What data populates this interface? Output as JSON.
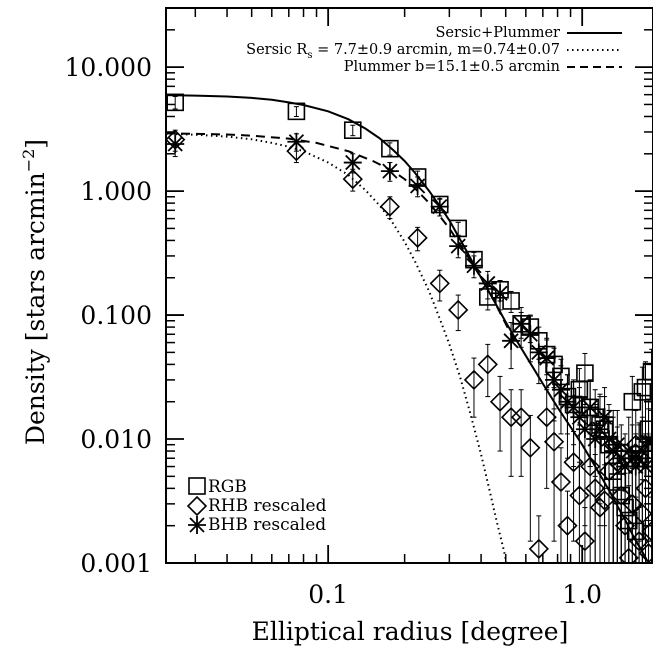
{
  "chart_data": {
    "type": "scatter",
    "xlabel": "Elliptical radius [degree]",
    "ylabel": "Density [stars arcmin",
    "ylabel_sup": "−2",
    "ylabel_end": "]",
    "x_scale": "log",
    "y_scale": "log",
    "xlim": [
      0.023,
      1.9
    ],
    "ylim": [
      0.001,
      30
    ],
    "grid": false,
    "x_ticks": [
      {
        "value": 0.1,
        "label": "0.1"
      },
      {
        "value": 1.0,
        "label": "1.0"
      }
    ],
    "y_ticks": [
      {
        "value": 10,
        "label": "10.000"
      },
      {
        "value": 1,
        "label": "1.000"
      },
      {
        "value": 0.1,
        "label": "0.100"
      },
      {
        "value": 0.01,
        "label": "0.010"
      },
      {
        "value": 0.001,
        "label": "0.001"
      }
    ],
    "legend_lines": {
      "position": "top-right",
      "entries": [
        {
          "label": "Sersic+Plummer",
          "style": "solid"
        },
        {
          "label_main": "Sersic R",
          "label_sub": "s",
          "label_rest": " = 7.7±0.9 arcmin, m=0.74±0.07",
          "style": "dotted"
        },
        {
          "label": "Plummer b=15.1±0.5 arcmin",
          "style": "dashed"
        }
      ]
    },
    "legend_markers": {
      "position": "bottom-left",
      "entries": [
        {
          "label": "RGB",
          "marker": "square"
        },
        {
          "label": "RHB rescaled",
          "marker": "diamond"
        },
        {
          "label": "BHB rescaled",
          "marker": "asterisk"
        }
      ]
    },
    "series": [
      {
        "name": "RGB",
        "marker": "square",
        "points": [
          {
            "x": 0.025,
            "y": 5.2,
            "err": 0.6
          },
          {
            "x": 0.075,
            "y": 4.4,
            "err": 0.4
          },
          {
            "x": 0.125,
            "y": 3.1,
            "err": 0.3
          },
          {
            "x": 0.175,
            "y": 2.2,
            "err": 0.25
          },
          {
            "x": 0.225,
            "y": 1.3,
            "err": 0.15
          },
          {
            "x": 0.275,
            "y": 0.78,
            "err": 0.08
          },
          {
            "x": 0.325,
            "y": 0.5,
            "err": 0.06
          },
          {
            "x": 0.375,
            "y": 0.28,
            "err": 0.04
          },
          {
            "x": 0.425,
            "y": 0.14,
            "err": 0.03
          },
          {
            "x": 0.475,
            "y": 0.16,
            "err": 0.03
          },
          {
            "x": 0.525,
            "y": 0.13,
            "err": 0.025
          },
          {
            "x": 0.575,
            "y": 0.085,
            "err": 0.02
          },
          {
            "x": 0.625,
            "y": 0.08,
            "err": 0.02
          },
          {
            "x": 0.675,
            "y": 0.062,
            "err": 0.018
          },
          {
            "x": 0.725,
            "y": 0.048,
            "err": 0.015
          },
          {
            "x": 0.775,
            "y": 0.04,
            "err": 0.014
          },
          {
            "x": 0.825,
            "y": 0.032,
            "err": 0.012
          },
          {
            "x": 0.875,
            "y": 0.022,
            "err": 0.011
          },
          {
            "x": 0.925,
            "y": 0.019,
            "err": 0.01
          },
          {
            "x": 0.975,
            "y": 0.025,
            "err": 0.012
          },
          {
            "x": 1.025,
            "y": 0.034,
            "err": 0.015
          },
          {
            "x": 1.075,
            "y": 0.018,
            "err": 0.012
          },
          {
            "x": 1.125,
            "y": 0.015,
            "err": 0.01
          },
          {
            "x": 1.175,
            "y": 0.013,
            "err": 0.01
          },
          {
            "x": 1.225,
            "y": 0.012,
            "err": 0.01
          },
          {
            "x": 1.275,
            "y": 0.009,
            "err": 0.008
          },
          {
            "x": 1.325,
            "y": 0.0055,
            "err": 0.005
          },
          {
            "x": 1.375,
            "y": 0.0045,
            "err": 0.004
          },
          {
            "x": 1.425,
            "y": 0.0035,
            "err": 0.003
          },
          {
            "x": 1.475,
            "y": 0.0028,
            "err": 0.0025
          },
          {
            "x": 1.525,
            "y": 0.0022,
            "err": 0.002
          },
          {
            "x": 1.575,
            "y": 0.02,
            "err": 0.012
          },
          {
            "x": 1.625,
            "y": 0.0018,
            "err": 0.0016
          },
          {
            "x": 1.675,
            "y": 0.0075,
            "err": 0.006
          },
          {
            "x": 1.725,
            "y": 0.024,
            "err": 0.014
          },
          {
            "x": 1.775,
            "y": 0.026,
            "err": 0.016
          },
          {
            "x": 1.825,
            "y": 0.012,
            "err": 0.009
          },
          {
            "x": 1.875,
            "y": 0.035,
            "err": 0.018
          }
        ]
      },
      {
        "name": "RHB rescaled",
        "marker": "diamond",
        "points": [
          {
            "x": 0.025,
            "y": 2.6,
            "err": 0.5
          },
          {
            "x": 0.075,
            "y": 2.1,
            "err": 0.4
          },
          {
            "x": 0.125,
            "y": 1.25,
            "err": 0.25
          },
          {
            "x": 0.175,
            "y": 0.75,
            "err": 0.15
          },
          {
            "x": 0.225,
            "y": 0.42,
            "err": 0.09
          },
          {
            "x": 0.275,
            "y": 0.18,
            "err": 0.05
          },
          {
            "x": 0.325,
            "y": 0.11,
            "err": 0.035
          },
          {
            "x": 0.375,
            "y": 0.03,
            "err": 0.015
          },
          {
            "x": 0.425,
            "y": 0.04,
            "err": 0.018
          },
          {
            "x": 0.475,
            "y": 0.02,
            "err": 0.012
          },
          {
            "x": 0.525,
            "y": 0.015,
            "err": 0.01
          },
          {
            "x": 0.575,
            "y": 0.015,
            "err": 0.01
          },
          {
            "x": 0.625,
            "y": 0.0085,
            "err": 0.007
          },
          {
            "x": 0.675,
            "y": 0.0013,
            "err": 0.0011
          },
          {
            "x": 0.725,
            "y": 0.015,
            "err": 0.011
          },
          {
            "x": 0.775,
            "y": 0.0095,
            "err": 0.008
          },
          {
            "x": 0.825,
            "y": 0.0045,
            "err": 0.004
          },
          {
            "x": 0.875,
            "y": 0.002,
            "err": 0.0018
          },
          {
            "x": 0.925,
            "y": 0.0065,
            "err": 0.005
          },
          {
            "x": 0.975,
            "y": 0.0035,
            "err": 0.003
          },
          {
            "x": 1.025,
            "y": 0.0015,
            "err": 0.0013
          },
          {
            "x": 1.075,
            "y": 0.006,
            "err": 0.005
          },
          {
            "x": 1.125,
            "y": 0.004,
            "err": 0.0035
          },
          {
            "x": 1.175,
            "y": 0.0028,
            "err": 0.0025
          },
          {
            "x": 1.225,
            "y": 0.0032,
            "err": 0.003
          },
          {
            "x": 1.275,
            "y": 0.0055,
            "err": 0.005
          },
          {
            "x": 1.325,
            "y": 0.009,
            "err": 0.008
          },
          {
            "x": 1.375,
            "y": 0.0065,
            "err": 0.006
          },
          {
            "x": 1.425,
            "y": 0.0035,
            "err": 0.003
          },
          {
            "x": 1.475,
            "y": 0.002,
            "err": 0.0018
          },
          {
            "x": 1.525,
            "y": 0.0011,
            "err": 0.001
          },
          {
            "x": 1.575,
            "y": 0.003,
            "err": 0.0028
          },
          {
            "x": 1.625,
            "y": 0.009,
            "err": 0.008
          },
          {
            "x": 1.675,
            "y": 0.0015,
            "err": 0.0013
          },
          {
            "x": 1.725,
            "y": 0.0025,
            "err": 0.0022
          },
          {
            "x": 1.775,
            "y": 0.004,
            "err": 0.0035
          },
          {
            "x": 1.825,
            "y": 0.0012,
            "err": 0.001
          },
          {
            "x": 1.875,
            "y": 0.0018,
            "err": 0.0016
          }
        ]
      },
      {
        "name": "BHB rescaled",
        "marker": "asterisk",
        "points": [
          {
            "x": 0.025,
            "y": 2.4,
            "err": 0.5
          },
          {
            "x": 0.075,
            "y": 2.5,
            "err": 0.4
          },
          {
            "x": 0.125,
            "y": 1.7,
            "err": 0.3
          },
          {
            "x": 0.175,
            "y": 1.45,
            "err": 0.25
          },
          {
            "x": 0.225,
            "y": 1.1,
            "err": 0.2
          },
          {
            "x": 0.275,
            "y": 0.75,
            "err": 0.12
          },
          {
            "x": 0.325,
            "y": 0.36,
            "err": 0.07
          },
          {
            "x": 0.375,
            "y": 0.25,
            "err": 0.05
          },
          {
            "x": 0.425,
            "y": 0.18,
            "err": 0.045
          },
          {
            "x": 0.475,
            "y": 0.15,
            "err": 0.04
          },
          {
            "x": 0.525,
            "y": 0.062,
            "err": 0.025
          },
          {
            "x": 0.575,
            "y": 0.085,
            "err": 0.03
          },
          {
            "x": 0.625,
            "y": 0.07,
            "err": 0.028
          },
          {
            "x": 0.675,
            "y": 0.05,
            "err": 0.022
          },
          {
            "x": 0.725,
            "y": 0.045,
            "err": 0.02
          },
          {
            "x": 0.775,
            "y": 0.03,
            "err": 0.016
          },
          {
            "x": 0.825,
            "y": 0.025,
            "err": 0.014
          },
          {
            "x": 0.875,
            "y": 0.02,
            "err": 0.013
          },
          {
            "x": 0.925,
            "y": 0.018,
            "err": 0.012
          },
          {
            "x": 0.975,
            "y": 0.015,
            "err": 0.011
          },
          {
            "x": 1.025,
            "y": 0.012,
            "err": 0.01
          },
          {
            "x": 1.075,
            "y": 0.018,
            "err": 0.012
          },
          {
            "x": 1.125,
            "y": 0.01,
            "err": 0.009
          },
          {
            "x": 1.175,
            "y": 0.012,
            "err": 0.01
          },
          {
            "x": 1.225,
            "y": 0.015,
            "err": 0.011
          },
          {
            "x": 1.275,
            "y": 0.01,
            "err": 0.009
          },
          {
            "x": 1.325,
            "y": 0.008,
            "err": 0.007
          },
          {
            "x": 1.375,
            "y": 0.009,
            "err": 0.008
          },
          {
            "x": 1.425,
            "y": 0.007,
            "err": 0.006
          },
          {
            "x": 1.475,
            "y": 0.006,
            "err": 0.005
          },
          {
            "x": 1.525,
            "y": 0.008,
            "err": 0.007
          },
          {
            "x": 1.575,
            "y": 0.007,
            "err": 0.006
          },
          {
            "x": 1.625,
            "y": 0.006,
            "err": 0.005
          },
          {
            "x": 1.675,
            "y": 0.007,
            "err": 0.006
          },
          {
            "x": 1.725,
            "y": 0.008,
            "err": 0.007
          },
          {
            "x": 1.775,
            "y": 0.006,
            "err": 0.005
          },
          {
            "x": 1.825,
            "y": 0.0095,
            "err": 0.008
          },
          {
            "x": 1.875,
            "y": 0.0095,
            "err": 0.008
          }
        ]
      }
    ],
    "model_curves": [
      {
        "name": "Sersic+Plummer",
        "style": "solid",
        "points": [
          [
            0.023,
            5.95
          ],
          [
            0.03,
            5.9
          ],
          [
            0.04,
            5.8
          ],
          [
            0.05,
            5.65
          ],
          [
            0.06,
            5.45
          ],
          [
            0.07,
            5.2
          ],
          [
            0.08,
            4.95
          ],
          [
            0.1,
            4.4
          ],
          [
            0.12,
            3.8
          ],
          [
            0.14,
            3.2
          ],
          [
            0.16,
            2.65
          ],
          [
            0.18,
            2.15
          ],
          [
            0.2,
            1.75
          ],
          [
            0.22,
            1.4
          ],
          [
            0.25,
            1.0
          ],
          [
            0.28,
            0.72
          ],
          [
            0.3,
            0.58
          ],
          [
            0.35,
            0.33
          ],
          [
            0.4,
            0.2
          ],
          [
            0.45,
            0.13
          ],
          [
            0.5,
            0.088
          ],
          [
            0.55,
            0.063
          ],
          [
            0.6,
            0.047
          ],
          [
            0.7,
            0.028
          ],
          [
            0.8,
            0.018
          ],
          [
            0.9,
            0.0125
          ],
          [
            1.0,
            0.009
          ],
          [
            1.1,
            0.0065
          ],
          [
            1.2,
            0.0048
          ],
          [
            1.3,
            0.0036
          ],
          [
            1.4,
            0.0027
          ],
          [
            1.5,
            0.0021
          ],
          [
            1.6,
            0.0016
          ],
          [
            1.7,
            0.0013
          ],
          [
            1.8,
            0.00105
          ],
          [
            1.9,
            0.00085
          ]
        ]
      },
      {
        "name": "Sersic",
        "style": "dotted",
        "points": [
          [
            0.023,
            2.9
          ],
          [
            0.03,
            2.85
          ],
          [
            0.04,
            2.75
          ],
          [
            0.05,
            2.62
          ],
          [
            0.06,
            2.45
          ],
          [
            0.07,
            2.28
          ],
          [
            0.08,
            2.1
          ],
          [
            0.1,
            1.7
          ],
          [
            0.12,
            1.35
          ],
          [
            0.14,
            1.02
          ],
          [
            0.16,
            0.76
          ],
          [
            0.18,
            0.55
          ],
          [
            0.2,
            0.39
          ],
          [
            0.22,
            0.27
          ],
          [
            0.25,
            0.155
          ],
          [
            0.28,
            0.085
          ],
          [
            0.3,
            0.058
          ],
          [
            0.33,
            0.032
          ],
          [
            0.36,
            0.017
          ],
          [
            0.4,
            0.0075
          ],
          [
            0.43,
            0.004
          ],
          [
            0.46,
            0.0022
          ],
          [
            0.49,
            0.0013
          ],
          [
            0.52,
            0.00075
          ]
        ]
      },
      {
        "name": "Plummer",
        "style": "dashed",
        "points": [
          [
            0.023,
            2.92
          ],
          [
            0.03,
            2.9
          ],
          [
            0.04,
            2.86
          ],
          [
            0.05,
            2.8
          ],
          [
            0.07,
            2.65
          ],
          [
            0.09,
            2.45
          ],
          [
            0.12,
            2.1
          ],
          [
            0.15,
            1.75
          ],
          [
            0.18,
            1.45
          ],
          [
            0.2,
            1.25
          ],
          [
            0.22,
            1.05
          ],
          [
            0.25,
            0.8
          ],
          [
            0.28,
            0.6
          ],
          [
            0.3,
            0.5
          ],
          [
            0.35,
            0.31
          ],
          [
            0.4,
            0.2
          ],
          [
            0.45,
            0.13
          ],
          [
            0.5,
            0.085
          ],
          [
            0.55,
            0.058
          ]
        ]
      }
    ]
  }
}
